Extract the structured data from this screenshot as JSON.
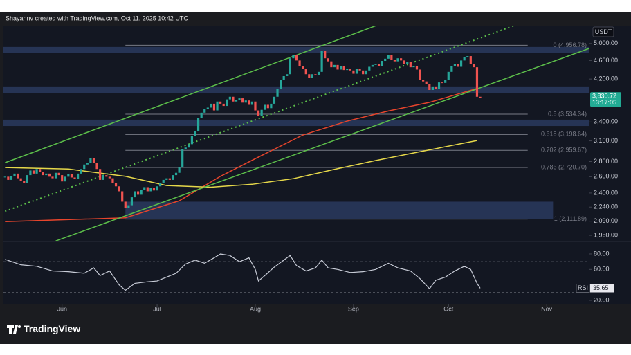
{
  "header": "Shayannv created with TradingView.com, Oct 11, 2025 10:42 UTC",
  "footer": {
    "logo": "TradingView"
  },
  "chart_data": {
    "type": "candlestick",
    "currency": "USDT",
    "log_scale": true,
    "grid": false,
    "up_color": "#26a69a",
    "down_color": "#ef5350",
    "close": [
      2600,
      2560,
      2610,
      2640,
      2580,
      2550,
      2520,
      2620,
      2680,
      2640,
      2700,
      2660,
      2620,
      2640,
      2600,
      2580,
      2650,
      2620,
      2540,
      2600,
      2630,
      2590,
      2570,
      2640,
      2700,
      2760,
      2780,
      2850,
      2780,
      2700,
      2560,
      2620,
      2600,
      2580,
      2520,
      2480,
      2420,
      2300,
      2230,
      2260,
      2350,
      2420,
      2380,
      2440,
      2470,
      2420,
      2460,
      2430,
      2480,
      2520,
      2560,
      2580,
      2560,
      2620,
      2650,
      2720,
      2980,
      3000,
      3050,
      3180,
      3250,
      3470,
      3560,
      3620,
      3650,
      3720,
      3600,
      3760,
      3720,
      3680,
      3800,
      3850,
      3760,
      3790,
      3820,
      3740,
      3780,
      3700,
      3760,
      3600,
      3500,
      3610,
      3700,
      3640,
      3720,
      3850,
      4000,
      4180,
      4260,
      4300,
      4650,
      4720,
      4600,
      4480,
      4420,
      4300,
      4230,
      4300,
      4280,
      4350,
      4820,
      4650,
      4580,
      4450,
      4500,
      4400,
      4470,
      4390,
      4420,
      4380,
      4310,
      4420,
      4380,
      4300,
      4380,
      4460,
      4500,
      4520,
      4480,
      4590,
      4640,
      4720,
      4620,
      4580,
      4650,
      4600,
      4520,
      4560,
      4450,
      4470,
      4400,
      4180,
      4150,
      4090,
      3980,
      4050,
      4000,
      4130,
      4120,
      4180,
      4350,
      4480,
      4520,
      4460,
      4600,
      4680,
      4700,
      4520,
      4450,
      3850,
      3830.72
    ],
    "xlim": [
      -0.5,
      184.5
    ],
    "xticks": [
      {
        "value": 18,
        "label": "Jun"
      },
      {
        "value": 48,
        "label": "Jul"
      },
      {
        "value": 79,
        "label": "Aug"
      },
      {
        "value": 110,
        "label": "Sep"
      },
      {
        "value": 140,
        "label": "Oct"
      },
      {
        "value": 171,
        "label": "Nov"
      }
    ],
    "ylim": [
      1898,
      5440
    ],
    "yticks": [
      {
        "value": 5000,
        "label": "5,000.00"
      },
      {
        "value": 4600,
        "label": "4,600.00"
      },
      {
        "value": 4200,
        "label": "4,200.00"
      },
      {
        "value": 3400,
        "label": "3,400.00"
      },
      {
        "value": 3100,
        "label": "3,100.00"
      },
      {
        "value": 2800,
        "label": "2,800.00"
      },
      {
        "value": 2600,
        "label": "2,600.00"
      },
      {
        "value": 2400,
        "label": "2,400.00"
      },
      {
        "value": 2240,
        "label": "2,240.00"
      },
      {
        "value": 2090,
        "label": "2,090.00"
      },
      {
        "value": 1950,
        "label": "1,950.00"
      }
    ],
    "price_tag": {
      "value": 3830.72,
      "label": "3,830.72",
      "countdown": "13:17:05",
      "color": "#22ab94"
    },
    "moving_averages": [
      {
        "color": "#e8452c",
        "x": [
          0,
          38,
          55,
          68,
          81,
          94,
          108,
          121,
          134,
          149
        ],
        "values": [
          2086,
          2125,
          2310,
          2605,
          2885,
          3190,
          3415,
          3590,
          3745,
          4010
        ]
      },
      {
        "color": "#e6d84a",
        "x": [
          0,
          20,
          38,
          51,
          65,
          78,
          91,
          104,
          117,
          130,
          149
        ],
        "values": [
          2720,
          2700,
          2605,
          2490,
          2470,
          2505,
          2575,
          2695,
          2815,
          2930,
          3105
        ]
      }
    ],
    "trendlines": [
      {
        "color": "#5cbf4a",
        "style": "solid",
        "points": [
          [
            0,
            2785
          ],
          [
            118.5,
            5500
          ]
        ]
      },
      {
        "color": "#5cbf4a",
        "style": "solid",
        "points": [
          [
            16,
            1897
          ],
          [
            184.4,
            4880
          ]
        ]
      },
      {
        "color": "#5cbf4a",
        "style": "dotted",
        "points": [
          [
            0,
            2195
          ],
          [
            162,
            5500
          ]
        ]
      }
    ],
    "zones": [
      {
        "from": 4765,
        "to": 4915,
        "color": "#2a3a5e"
      },
      {
        "from": 3925,
        "to": 4050,
        "color": "#2a3a5e"
      },
      {
        "from": 3335,
        "to": 3440,
        "color": "#2a3a5e"
      },
      {
        "from": 2110,
        "to": 2300,
        "start": 38,
        "end": 173,
        "color": "#2a3a5e"
      }
    ],
    "fib": {
      "color": "#787b86",
      "start": 38,
      "end": 165,
      "levels": [
        {
          "value": 4956.78,
          "label": "0 (4,956.78)"
        },
        {
          "value": 3534.34,
          "label": "0.5 (3,534.34)"
        },
        {
          "value": 3198.64,
          "label": "0.618 (3,198.64)"
        },
        {
          "value": 2959.67,
          "label": "0.702 (2,959.67)"
        },
        {
          "value": 2720.7,
          "label": "0.786 (2,720.70)"
        },
        {
          "value": 2111.89,
          "label": "1 (2,111.89)"
        }
      ]
    },
    "rsi": {
      "label": "RSI",
      "color": "#c9cdd8",
      "x": [
        0,
        5,
        10,
        15,
        20,
        25,
        28,
        30,
        33,
        36,
        38,
        41,
        45,
        48,
        51,
        54,
        57,
        60,
        63,
        66,
        68,
        71,
        74,
        77,
        79,
        80,
        82,
        85,
        88,
        90,
        92,
        95,
        98,
        100,
        102,
        105,
        109,
        113,
        117,
        121,
        124,
        128,
        131,
        134,
        136,
        139,
        142,
        145,
        147,
        149,
        150
      ],
      "values": [
        73,
        66,
        64,
        58,
        57,
        55,
        62,
        52,
        58,
        40,
        33,
        42,
        44,
        45,
        50,
        55,
        67,
        72,
        68,
        75,
        80,
        78,
        70,
        75,
        60,
        45,
        52,
        63,
        72,
        78,
        65,
        58,
        62,
        72,
        62,
        60,
        56,
        57,
        60,
        68,
        62,
        58,
        48,
        35,
        46,
        50,
        58,
        64,
        60,
        42,
        35.65
      ],
      "ylim": [
        14.6,
        95.2
      ],
      "yticks": [
        {
          "value": 80,
          "label": "80.00"
        },
        {
          "value": 60,
          "label": "60.00"
        },
        {
          "value": 20,
          "label": "20.00"
        }
      ],
      "bands": [
        70,
        30
      ]
    }
  }
}
